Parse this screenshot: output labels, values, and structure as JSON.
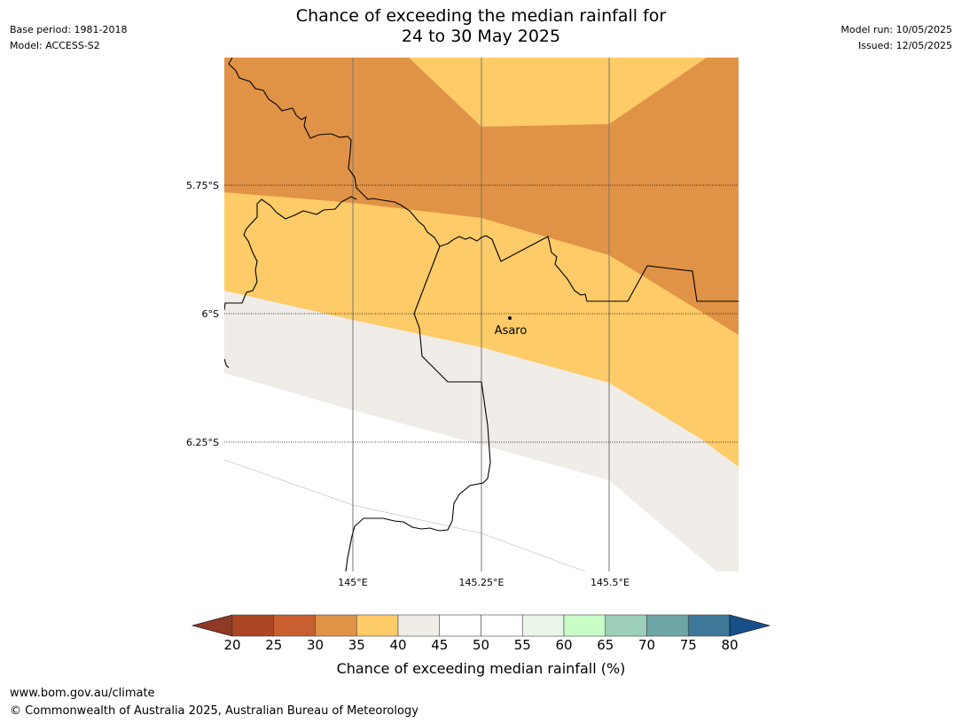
{
  "header": {
    "base_period": "Base period: 1981-2018",
    "model": "Model: ACCESS-S2",
    "title_line1": "Chance of exceeding the median rainfall for",
    "title_line2": "24 to 30 May 2025",
    "model_run": "Model run: 10/05/2025",
    "issued": "Issued: 12/05/2025"
  },
  "map": {
    "lat_labels": [
      "5.75°S",
      "6°S",
      "6.25°S"
    ],
    "lon_labels": [
      "145°E",
      "145.25°E",
      "145.5°E"
    ],
    "place": "Asaro",
    "band_colors": {
      "p30_35": "#e09346",
      "p35_40": "#fdcb67",
      "p40_45": "#f0ece7",
      "p45_55": "#ffffff"
    }
  },
  "colorbar": {
    "ticks": [
      "20",
      "25",
      "30",
      "35",
      "40",
      "45",
      "50",
      "55",
      "60",
      "65",
      "70",
      "75",
      "80"
    ],
    "colors": [
      "#ac4624",
      "#c95f2f",
      "#e09346",
      "#fdcb67",
      "#f0ece7",
      "#ffffff",
      "#ffffff",
      "#eaf7e8",
      "#c8fdc8",
      "#9ccfb9",
      "#6ea6a6",
      "#3e7899"
    ],
    "under_color": "#8e3a26",
    "over_color": "#174f89",
    "label": "Chance of exceeding median rainfall (%)"
  },
  "footer": {
    "url": "www.bom.gov.au/climate",
    "copyright": "© Commonwealth of Australia 2025, Australian Bureau of Meteorology"
  }
}
